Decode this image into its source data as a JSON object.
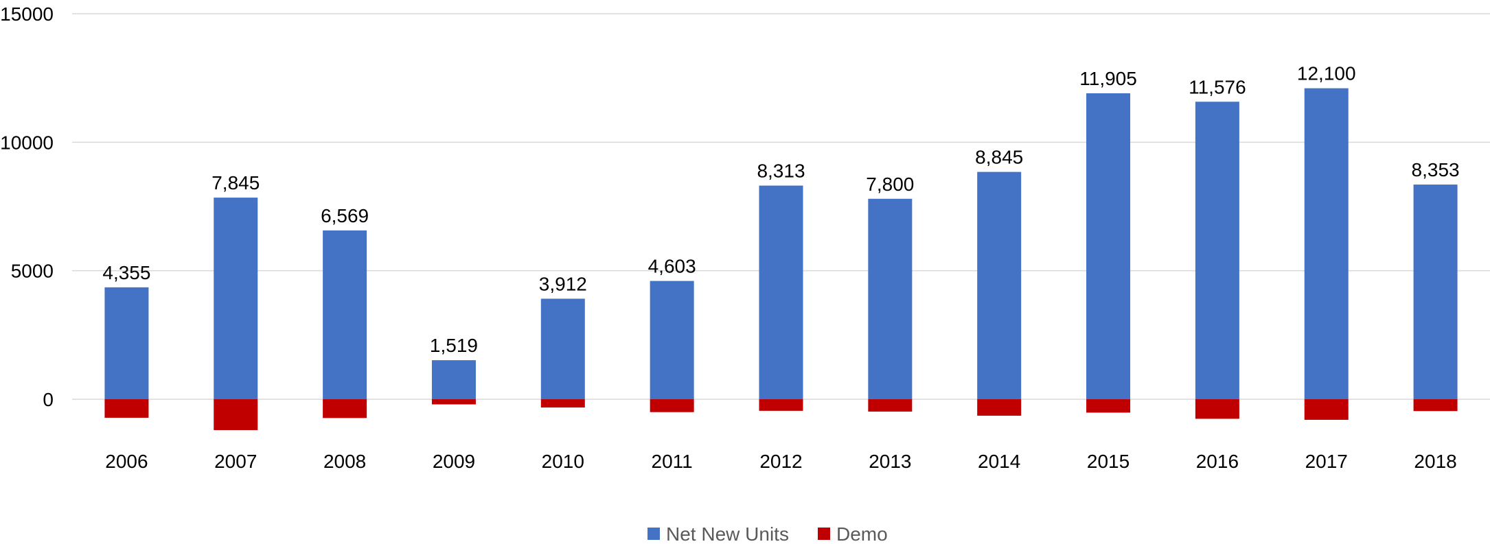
{
  "chart_data": {
    "type": "bar",
    "stacked": true,
    "categories": [
      "2006",
      "2007",
      "2008",
      "2009",
      "2010",
      "2011",
      "2012",
      "2013",
      "2014",
      "2015",
      "2016",
      "2017",
      "2018"
    ],
    "series": [
      {
        "name": "Net New Units",
        "color": "#4472c4",
        "values": [
          4355,
          7845,
          6569,
          1519,
          3912,
          4603,
          8313,
          7800,
          8845,
          11905,
          11576,
          12100,
          8353
        ],
        "data_labels": [
          "4,355",
          "7,845",
          "6,569",
          "1,519",
          "3,912",
          "4,603",
          "8,313",
          "7,800",
          "8,845",
          "11,905",
          "11,576",
          "12,100",
          "8,353"
        ]
      },
      {
        "name": "Demo",
        "color": "#c00000",
        "values": [
          -720,
          -1200,
          -730,
          -200,
          -320,
          -500,
          -450,
          -480,
          -640,
          -520,
          -760,
          -800,
          -460
        ]
      }
    ],
    "y_ticks": [
      "0",
      "5000",
      "10000",
      "15000"
    ],
    "y_tick_values": [
      0,
      5000,
      10000,
      15000
    ],
    "ylim": [
      -1200,
      15000
    ],
    "grid": true,
    "legend_position": "bottom"
  }
}
